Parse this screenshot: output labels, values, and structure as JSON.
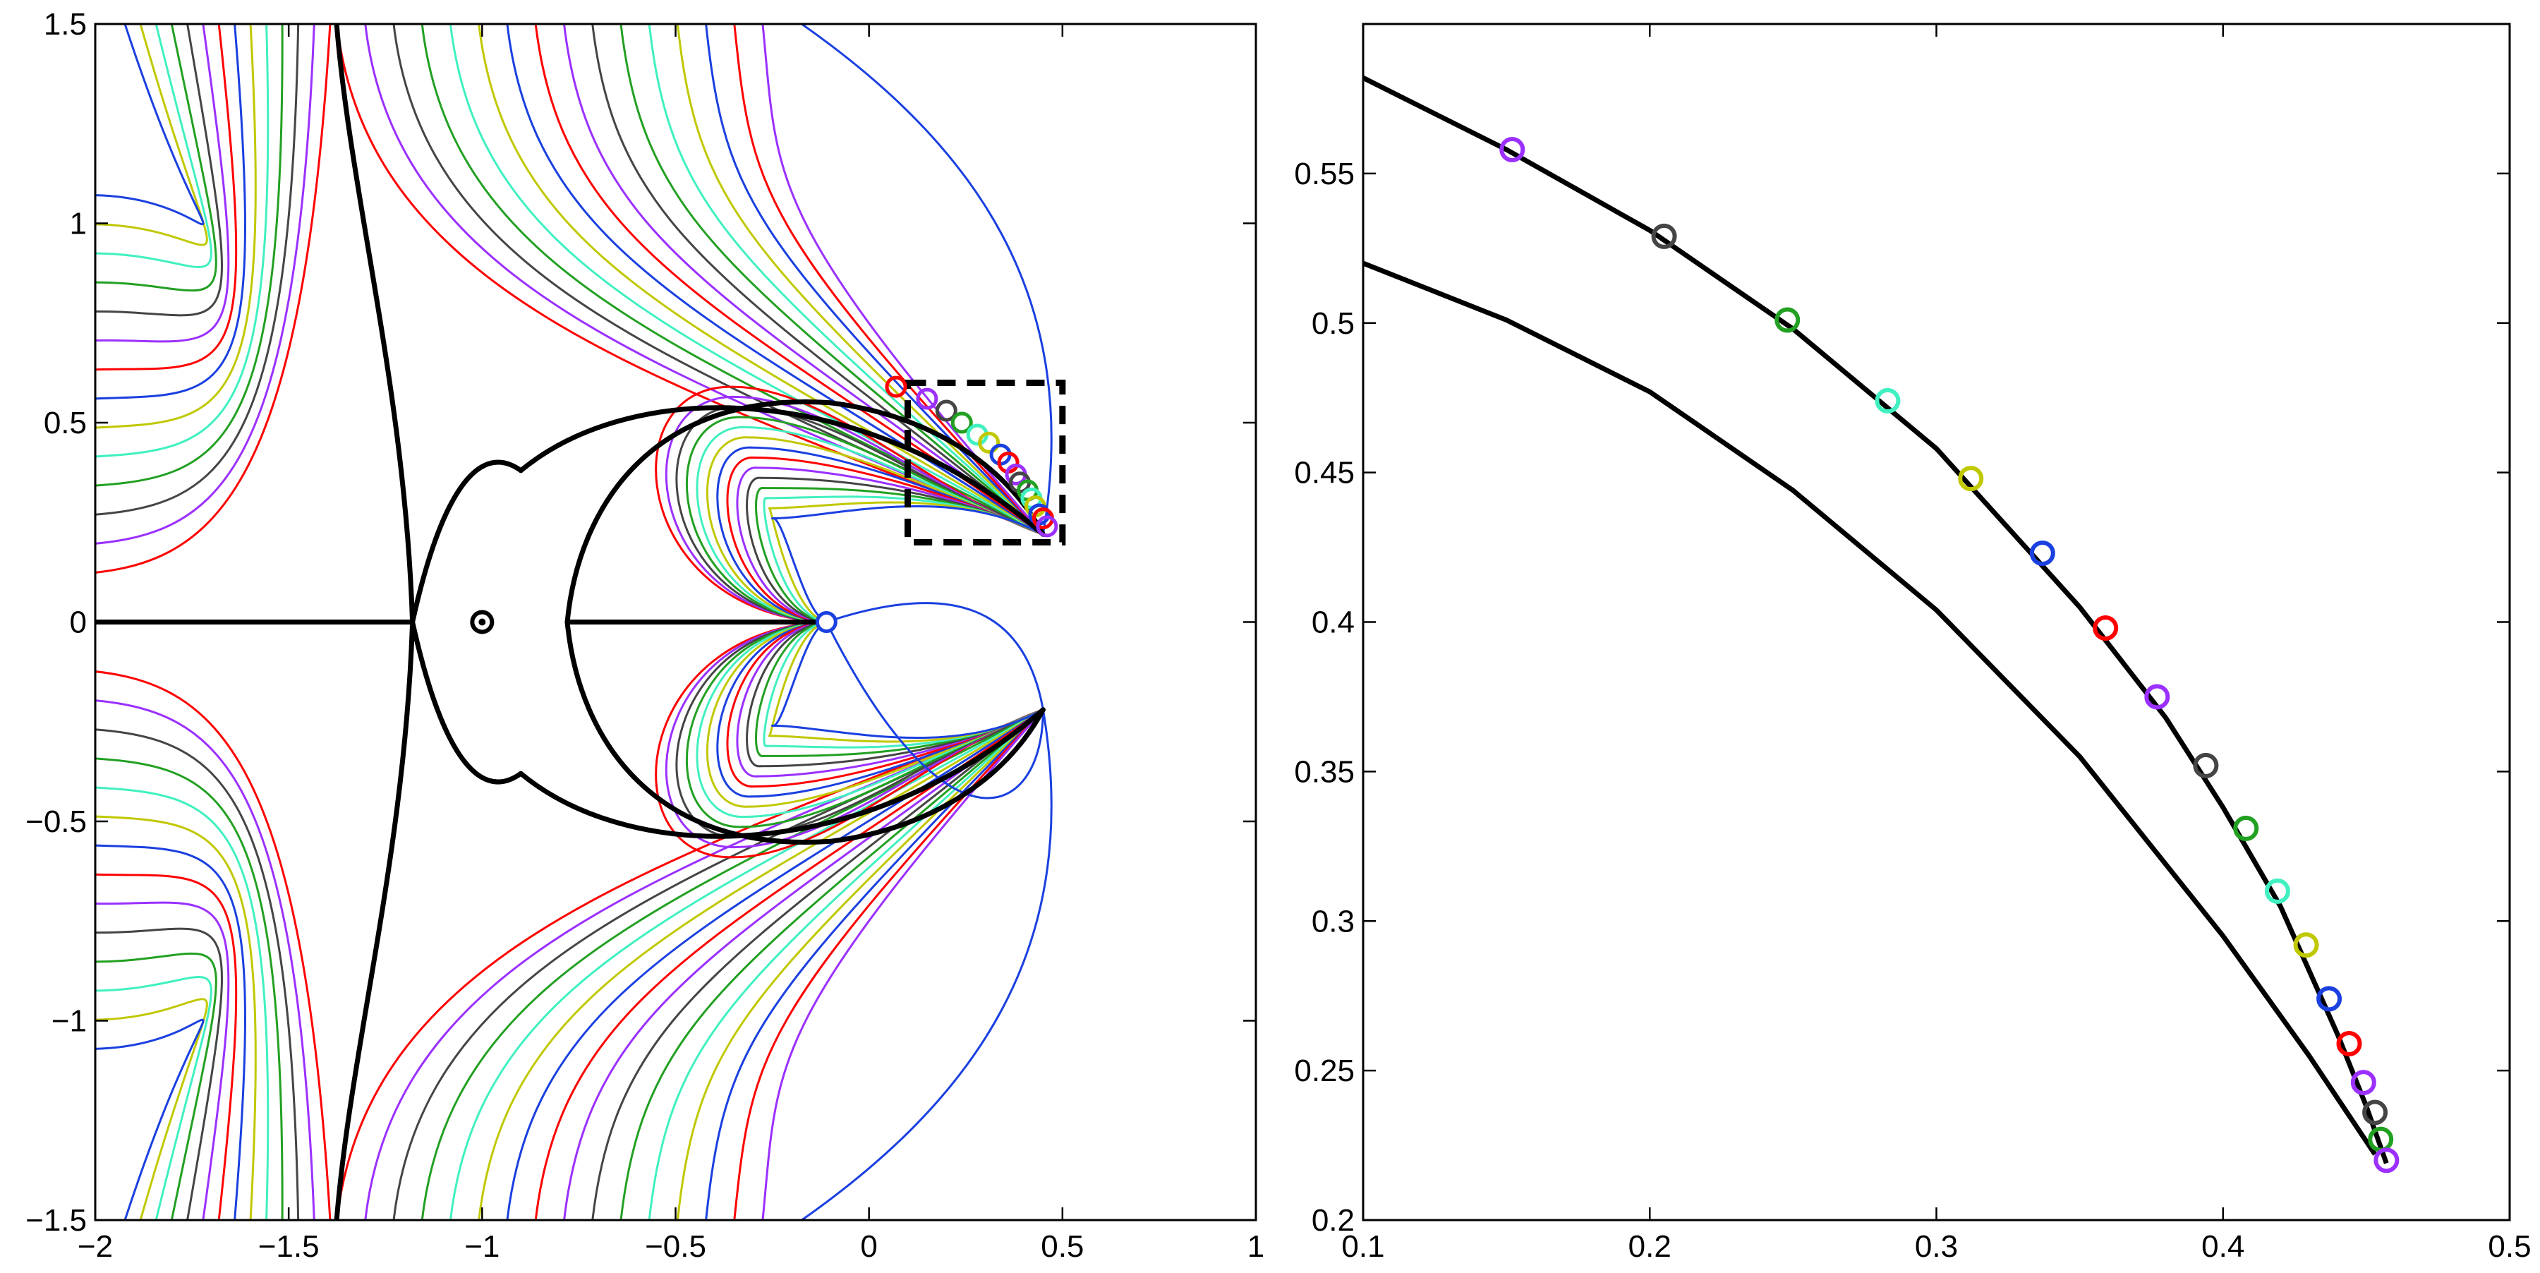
{
  "chart_data": [
    {
      "type": "line",
      "xlim": [
        -2,
        1
      ],
      "ylim": [
        -1.5,
        1.5
      ],
      "xticks": [
        "-2",
        "-1.5",
        "-1",
        "-0.5",
        "0",
        "0.5",
        "1"
      ],
      "yticks": [
        "-1.5",
        "-1",
        "-0.5",
        "0",
        "0.5",
        "1",
        "1.5"
      ],
      "xlabel": "",
      "ylabel": "",
      "grid": false,
      "colors": [
        "#ff0000",
        "#9b30ff",
        "#454545",
        "#22a022",
        "#40f0c0",
        "#c0c800",
        "#1a40e0"
      ],
      "zoom_box": {
        "x": [
          0.1,
          0.5
        ],
        "y": [
          0.2,
          0.6
        ]
      },
      "center_marker": [
        -1.0,
        0.0
      ],
      "cusp_marker": [
        -0.11,
        0.0
      ],
      "markers_upper": [
        [
          0.07,
          0.59
        ],
        [
          0.15,
          0.56
        ],
        [
          0.2,
          0.53
        ],
        [
          0.24,
          0.5
        ],
        [
          0.28,
          0.47
        ],
        [
          0.31,
          0.45
        ],
        [
          0.34,
          0.42
        ],
        [
          0.36,
          0.4
        ],
        [
          0.38,
          0.37
        ],
        [
          0.39,
          0.35
        ],
        [
          0.41,
          0.33
        ],
        [
          0.42,
          0.31
        ],
        [
          0.43,
          0.29
        ],
        [
          0.44,
          0.27
        ],
        [
          0.45,
          0.26
        ],
        [
          0.46,
          0.24
        ]
      ]
    },
    {
      "type": "line",
      "xlim": [
        0.1,
        0.5
      ],
      "ylim": [
        0.2,
        0.6
      ],
      "xticks": [
        "0.1",
        "0.2",
        "0.3",
        "0.4",
        "0.5"
      ],
      "yticks": [
        "0.2",
        "0.25",
        "0.3",
        "0.35",
        "0.4",
        "0.45",
        "0.5",
        "0.55"
      ],
      "xlabel": "",
      "ylabel": "",
      "grid": false,
      "upper_curve": {
        "x": [
          0.1,
          0.15,
          0.2,
          0.25,
          0.3,
          0.35,
          0.38,
          0.4,
          0.42,
          0.44,
          0.45,
          0.457
        ],
        "y": [
          0.582,
          0.558,
          0.531,
          0.498,
          0.458,
          0.405,
          0.368,
          0.338,
          0.305,
          0.262,
          0.238,
          0.219
        ]
      },
      "lower_curve": {
        "x": [
          0.1,
          0.15,
          0.2,
          0.25,
          0.3,
          0.35,
          0.4,
          0.43,
          0.453
        ],
        "y": [
          0.52,
          0.501,
          0.477,
          0.444,
          0.404,
          0.355,
          0.295,
          0.255,
          0.222
        ]
      },
      "markers": [
        {
          "x": 0.152,
          "y": 0.558,
          "color": "#9b30ff"
        },
        {
          "x": 0.205,
          "y": 0.529,
          "color": "#454545"
        },
        {
          "x": 0.248,
          "y": 0.501,
          "color": "#22a022"
        },
        {
          "x": 0.283,
          "y": 0.474,
          "color": "#40f0c0"
        },
        {
          "x": 0.312,
          "y": 0.448,
          "color": "#c0c800"
        },
        {
          "x": 0.337,
          "y": 0.423,
          "color": "#1a40e0"
        },
        {
          "x": 0.359,
          "y": 0.398,
          "color": "#ff0000"
        },
        {
          "x": 0.377,
          "y": 0.375,
          "color": "#9b30ff"
        },
        {
          "x": 0.394,
          "y": 0.352,
          "color": "#454545"
        },
        {
          "x": 0.408,
          "y": 0.331,
          "color": "#22a022"
        },
        {
          "x": 0.419,
          "y": 0.31,
          "color": "#40f0c0"
        },
        {
          "x": 0.429,
          "y": 0.292,
          "color": "#c0c800"
        },
        {
          "x": 0.437,
          "y": 0.274,
          "color": "#1a40e0"
        },
        {
          "x": 0.444,
          "y": 0.259,
          "color": "#ff0000"
        },
        {
          "x": 0.449,
          "y": 0.246,
          "color": "#9b30ff"
        },
        {
          "x": 0.453,
          "y": 0.236,
          "color": "#454545"
        },
        {
          "x": 0.455,
          "y": 0.227,
          "color": "#22a022"
        },
        {
          "x": 0.457,
          "y": 0.22,
          "color": "#9b30ff"
        }
      ]
    }
  ]
}
